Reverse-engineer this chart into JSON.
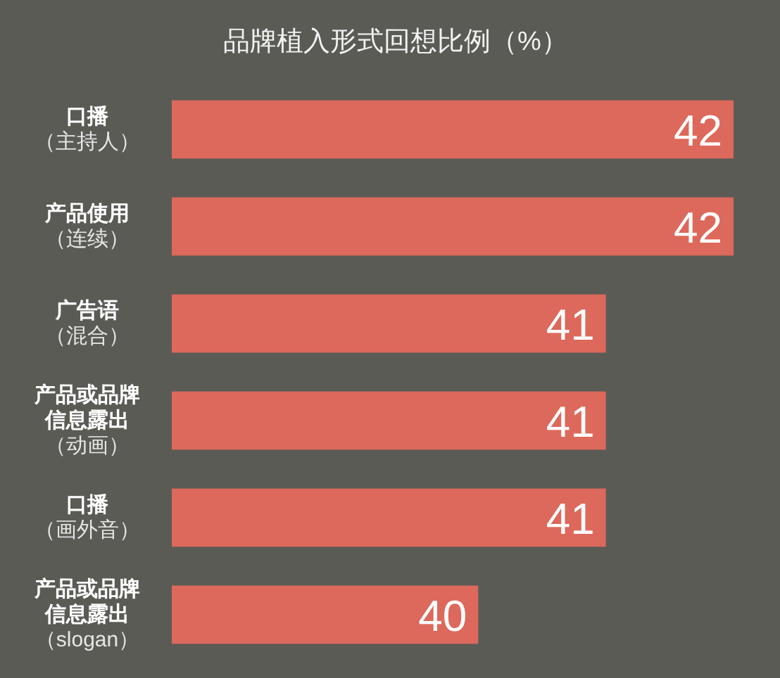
{
  "chart_data": {
    "type": "bar",
    "orientation": "horizontal",
    "title": "品牌植入形式回想比例（%）",
    "categories": [
      "口播（主持人）",
      "产品使用（连续）",
      "广告语（混合）",
      "产品或品牌信息露出（动画）",
      "口播（画外音）",
      "产品或品牌信息露出（slogan）"
    ],
    "values": [
      42,
      42,
      41,
      41,
      41,
      40
    ],
    "color": "#dc695b",
    "xlim": [
      37.6,
      42
    ],
    "data_labels": true,
    "tick_labels": "y"
  }
}
